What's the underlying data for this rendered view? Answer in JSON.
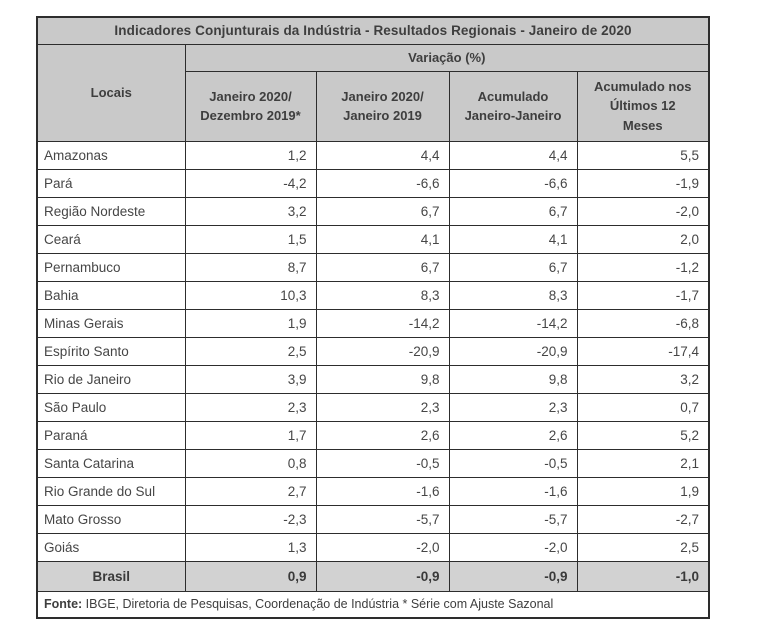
{
  "colors": {
    "header_bg": "#c9c9c9",
    "total_row_bg": "#d2d2d2",
    "border": "#2d2d2d",
    "text": "#3e3e3e",
    "page_bg": "#ffffff"
  },
  "table": {
    "title": "Indicadores Conjunturais da Indústria - Resultados Regionais - Janeiro de 2020",
    "locais_header": "Locais",
    "group_header": "Variação (%)",
    "column_headers": [
      {
        "lines": [
          "Janeiro 2020/",
          "Dezembro 2019*"
        ]
      },
      {
        "lines": [
          "Janeiro 2020/",
          "Janeiro 2019"
        ]
      },
      {
        "lines": [
          "Acumulado",
          "Janeiro-Janeiro"
        ]
      },
      {
        "lines": [
          "Acumulado nos",
          "Últimos 12",
          "Meses"
        ]
      }
    ],
    "rows": [
      {
        "name": "Amazonas",
        "values": [
          "1,2",
          "4,4",
          "4,4",
          "5,5"
        ]
      },
      {
        "name": "Pará",
        "values": [
          "-4,2",
          "-6,6",
          "-6,6",
          "-1,9"
        ]
      },
      {
        "name": "Região Nordeste",
        "values": [
          "3,2",
          "6,7",
          "6,7",
          "-2,0"
        ]
      },
      {
        "name": "Ceará",
        "values": [
          "1,5",
          "4,1",
          "4,1",
          "2,0"
        ]
      },
      {
        "name": "Pernambuco",
        "values": [
          "8,7",
          "6,7",
          "6,7",
          "-1,2"
        ]
      },
      {
        "name": "Bahia",
        "values": [
          "10,3",
          "8,3",
          "8,3",
          "-1,7"
        ]
      },
      {
        "name": "Minas Gerais",
        "values": [
          "1,9",
          "-14,2",
          "-14,2",
          "-6,8"
        ]
      },
      {
        "name": "Espírito Santo",
        "values": [
          "2,5",
          "-20,9",
          "-20,9",
          "-17,4"
        ]
      },
      {
        "name": "Rio de Janeiro",
        "values": [
          "3,9",
          "9,8",
          "9,8",
          "3,2"
        ]
      },
      {
        "name": "São Paulo",
        "values": [
          "2,3",
          "2,3",
          "2,3",
          "0,7"
        ]
      },
      {
        "name": "Paraná",
        "values": [
          "1,7",
          "2,6",
          "2,6",
          "5,2"
        ]
      },
      {
        "name": "Santa Catarina",
        "values": [
          "0,8",
          "-0,5",
          "-0,5",
          "2,1"
        ]
      },
      {
        "name": "Rio Grande do Sul",
        "values": [
          "2,7",
          "-1,6",
          "-1,6",
          "1,9"
        ]
      },
      {
        "name": "Mato Grosso",
        "values": [
          "-2,3",
          "-5,7",
          "-5,7",
          "-2,7"
        ]
      },
      {
        "name": "Goiás",
        "values": [
          "1,3",
          "-2,0",
          "-2,0",
          "2,5"
        ]
      }
    ],
    "total_row": {
      "label": "Brasil",
      "values": [
        "0,9",
        "-0,9",
        "-0,9",
        "-1,0"
      ]
    },
    "footer": {
      "label": "Fonte:",
      "text": " IBGE, Diretoria de Pesquisas, Coordenação de Indústria * Série com Ajuste Sazonal"
    }
  },
  "chart_data": {
    "type": "table",
    "title": "Indicadores Conjunturais da Indústria - Resultados Regionais - Janeiro de 2020",
    "unit": "Variação (%)",
    "columns": [
      "Locais",
      "Janeiro 2020/ Dezembro 2019*",
      "Janeiro 2020/ Janeiro 2019",
      "Acumulado Janeiro-Janeiro",
      "Acumulado nos Últimos 12 Meses"
    ],
    "rows": [
      [
        "Amazonas",
        1.2,
        4.4,
        4.4,
        5.5
      ],
      [
        "Pará",
        -4.2,
        -6.6,
        -6.6,
        -1.9
      ],
      [
        "Região Nordeste",
        3.2,
        6.7,
        6.7,
        -2.0
      ],
      [
        "Ceará",
        1.5,
        4.1,
        4.1,
        2.0
      ],
      [
        "Pernambuco",
        8.7,
        6.7,
        6.7,
        -1.2
      ],
      [
        "Bahia",
        10.3,
        8.3,
        8.3,
        -1.7
      ],
      [
        "Minas Gerais",
        1.9,
        -14.2,
        -14.2,
        -6.8
      ],
      [
        "Espírito Santo",
        2.5,
        -20.9,
        -20.9,
        -17.4
      ],
      [
        "Rio de Janeiro",
        3.9,
        9.8,
        9.8,
        3.2
      ],
      [
        "São Paulo",
        2.3,
        2.3,
        2.3,
        0.7
      ],
      [
        "Paraná",
        1.7,
        2.6,
        2.6,
        5.2
      ],
      [
        "Santa Catarina",
        0.8,
        -0.5,
        -0.5,
        2.1
      ],
      [
        "Rio Grande do Sul",
        2.7,
        -1.6,
        -1.6,
        1.9
      ],
      [
        "Mato Grosso",
        -2.3,
        -5.7,
        -5.7,
        -2.7
      ],
      [
        "Goiás",
        1.3,
        -2.0,
        -2.0,
        2.5
      ],
      [
        "Brasil",
        0.9,
        -0.9,
        -0.9,
        -1.0
      ]
    ],
    "source": "Fonte: IBGE, Diretoria de Pesquisas, Coordenação de Indústria * Série com Ajuste Sazonal"
  }
}
